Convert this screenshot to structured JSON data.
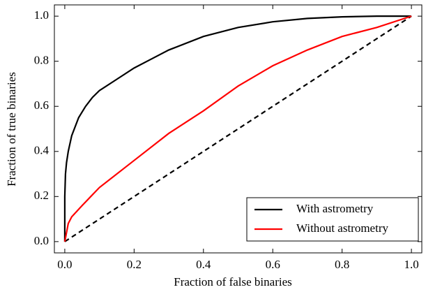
{
  "chart_data": {
    "type": "line",
    "x_label": "Fraction of false binaries",
    "y_label": "Fraction of true binaries",
    "xlim": [
      -0.03,
      1.03
    ],
    "ylim": [
      -0.05,
      1.05
    ],
    "xticks": [
      {
        "value": 0,
        "label": "0.0"
      },
      0.2,
      0.4,
      0.6,
      0.8,
      {
        "value": 1,
        "label": "1.0"
      }
    ],
    "yticks": [
      {
        "value": 0,
        "label": "0.0"
      },
      0.2,
      0.4,
      0.6,
      0.8,
      {
        "value": 1,
        "label": "1.0"
      }
    ],
    "legend": "lower right",
    "series": [
      {
        "name": "With astrometry",
        "color": "#000000",
        "x": [
          0,
          0,
          0.002,
          0.005,
          0.01,
          0.02,
          0.04,
          0.06,
          0.08,
          0.1,
          0.15,
          0.2,
          0.25,
          0.3,
          0.4,
          0.5,
          0.6,
          0.7,
          0.8,
          0.9,
          1.0
        ],
        "values": [
          0,
          0.2,
          0.3,
          0.35,
          0.4,
          0.47,
          0.55,
          0.6,
          0.64,
          0.67,
          0.72,
          0.77,
          0.81,
          0.85,
          0.91,
          0.95,
          0.975,
          0.99,
          0.997,
          1.0,
          1.0
        ]
      },
      {
        "name": "Without astrometry",
        "color": "#ff0000",
        "x": [
          0,
          0.01,
          0.02,
          0.05,
          0.1,
          0.2,
          0.3,
          0.4,
          0.5,
          0.6,
          0.7,
          0.8,
          0.9,
          1.0
        ],
        "values": [
          0,
          0.08,
          0.11,
          0.16,
          0.24,
          0.36,
          0.48,
          0.58,
          0.69,
          0.78,
          0.85,
          0.91,
          0.95,
          1.0
        ]
      }
    ],
    "reference_line": {
      "x": [
        0,
        1
      ],
      "values": [
        0,
        1
      ],
      "color": "#000000",
      "dashed": true
    }
  }
}
